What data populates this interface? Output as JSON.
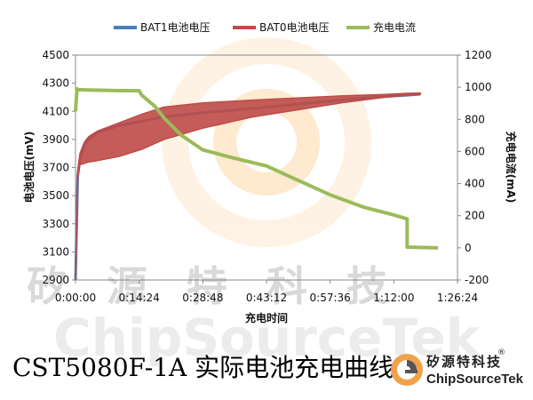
{
  "chart_data": {
    "type": "line",
    "title": "",
    "xlabel": "充电时间",
    "ylabel_left": "电池电压(mV)",
    "ylabel_right": "充电电流(mA)",
    "x_ticks": [
      "0:00:00",
      "0:14:24",
      "0:28:48",
      "0:43:12",
      "0:57:36",
      "1:12:00",
      "1:26:24"
    ],
    "x_range_seconds": [
      0,
      5184
    ],
    "y_left_range": [
      2900,
      4500
    ],
    "y_left_ticks": [
      2900,
      3100,
      3300,
      3500,
      3700,
      3900,
      4100,
      4300,
      4500
    ],
    "y_right_range": [
      -200,
      1200
    ],
    "y_right_ticks": [
      -200,
      0,
      200,
      400,
      600,
      800,
      1000,
      1200
    ],
    "legend_position": "top",
    "grid": false,
    "series": [
      {
        "name": "BAT1电池电压",
        "axis": "left",
        "color": "#4a7ebb",
        "x": [
          "0:00:00",
          "0:00:30",
          "0:01:00",
          "0:02:00",
          "0:03:00",
          "0:05:00",
          "0:10:00",
          "0:15:00",
          "0:20:00",
          "0:28:48",
          "0:40:00",
          "0:50:00",
          "1:00:00",
          "1:10:00",
          "1:15:00",
          "1:18:00"
        ],
        "y": [
          2900,
          3640,
          3760,
          3860,
          3900,
          3950,
          4000,
          4030,
          4060,
          4090,
          4120,
          4150,
          4180,
          4205,
          4215,
          4222
        ]
      },
      {
        "name": "BAT0电池电压",
        "axis": "left",
        "color": "#be4b48",
        "x": [
          "0:00:00",
          "0:00:30",
          "0:01:00",
          "0:02:00",
          "0:03:00",
          "0:05:00",
          "0:10:00",
          "0:15:00",
          "0:20:00",
          "0:28:48",
          "0:40:00",
          "0:50:00",
          "1:00:00",
          "1:10:00",
          "1:15:00",
          "1:18:00"
        ],
        "y_upper": [
          2900,
          3680,
          3800,
          3880,
          3920,
          3960,
          4020,
          4080,
          4130,
          4160,
          4180,
          4195,
          4210,
          4220,
          4228,
          4230
        ],
        "y_lower": [
          2900,
          3620,
          3720,
          3730,
          3740,
          3750,
          3780,
          3830,
          3900,
          3980,
          4060,
          4110,
          4160,
          4200,
          4215,
          4222
        ]
      },
      {
        "name": "充电电流",
        "axis": "right",
        "color": "#9bbb59",
        "x": [
          "0:00:00",
          "0:00:20",
          "0:00:40",
          "0:03:00",
          "0:08:00",
          "0:14:24",
          "0:15:00",
          "0:18:00",
          "0:20:00",
          "0:24:00",
          "0:28:48",
          "0:35:00",
          "0:43:12",
          "0:50:00",
          "0:57:36",
          "1:05:00",
          "1:12:00",
          "1:15:00",
          "1:15:01",
          "1:22:00"
        ],
        "y": [
          850,
          990,
          985,
          983,
          980,
          978,
          950,
          880,
          810,
          700,
          610,
          565,
          510,
          425,
          330,
          255,
          205,
          180,
          5,
          0
        ]
      }
    ]
  },
  "watermark": {
    "cn": "矽 源 特 科 技",
    "en": "ChipSourceTek"
  },
  "caption": "CST5080F-1A 实际电池充电曲线",
  "logo": {
    "cn": "矽源特科技",
    "en": "ChipSourceTek",
    "registered": "®",
    "colors": {
      "orange": "#f0a24a",
      "dark": "#555555"
    }
  }
}
